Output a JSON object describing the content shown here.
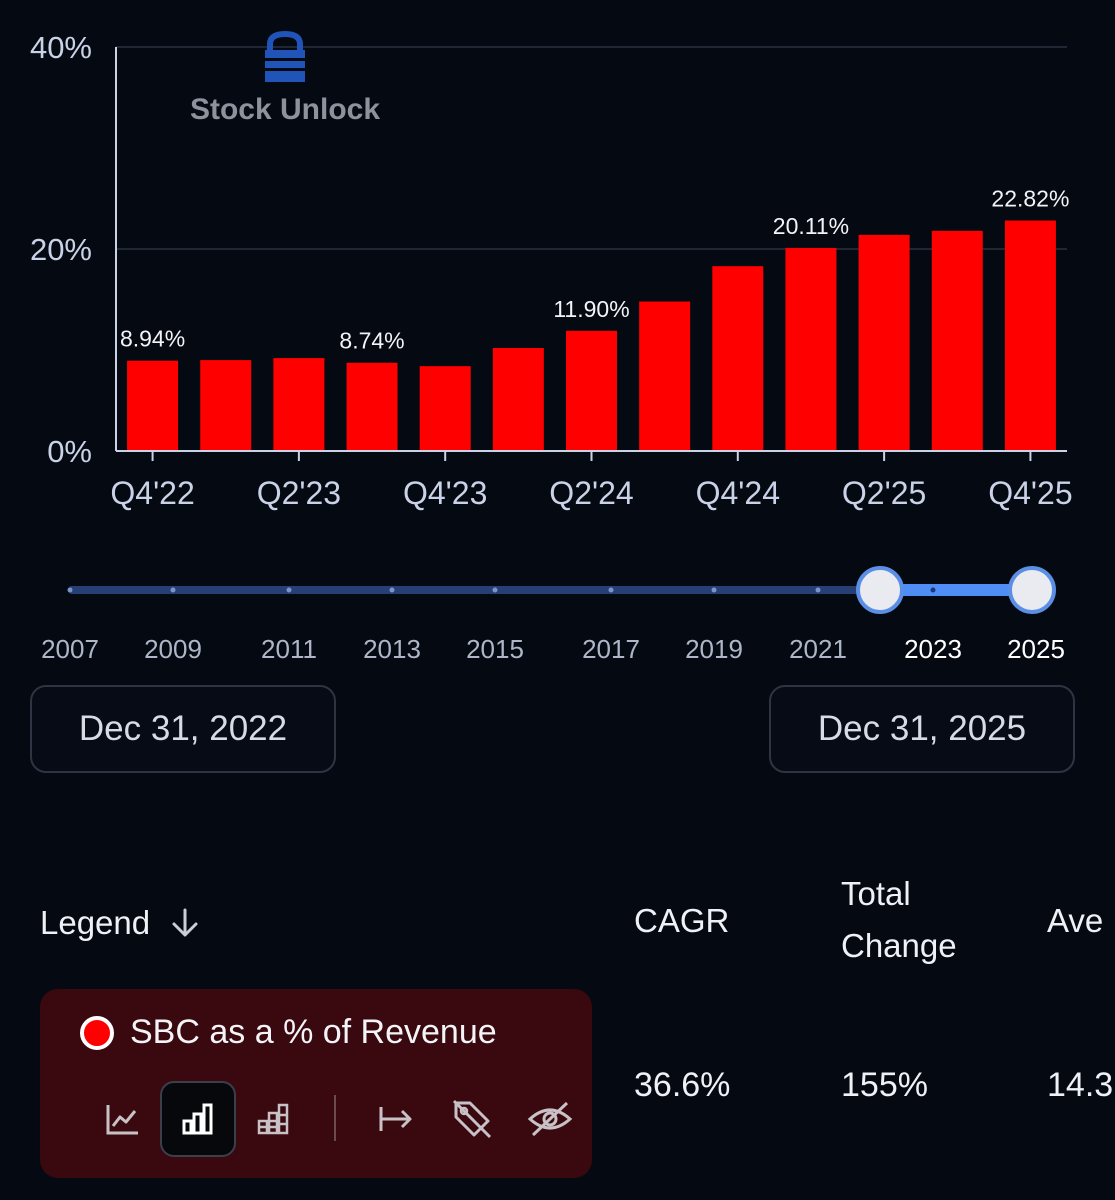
{
  "watermark": {
    "text": "Stock Unlock"
  },
  "chart_data": {
    "type": "bar",
    "categories": [
      "Q4'22",
      "Q1'23",
      "Q2'23",
      "Q3'23",
      "Q4'23",
      "Q1'24",
      "Q2'24",
      "Q3'24",
      "Q4'24",
      "Q1'25",
      "Q2'25",
      "Q3'25",
      "Q4'25"
    ],
    "series": [
      {
        "name": "SBC as a % of Revenue",
        "values": [
          8.94,
          9.0,
          9.2,
          8.74,
          8.4,
          10.2,
          11.9,
          14.8,
          18.3,
          20.11,
          21.4,
          21.8,
          22.82
        ]
      }
    ],
    "color": "#ff0000",
    "data_labels": [
      "8.94%",
      "",
      "",
      "8.74%",
      "",
      "",
      "11.90%",
      "",
      "",
      "20.11%",
      "",
      "",
      "22.82%"
    ],
    "x_tick_labels": [
      "Q4'22",
      "Q2'23",
      "Q4'23",
      "Q2'24",
      "Q4'24",
      "Q2'25",
      "Q4'25"
    ],
    "y_tick_labels": [
      "0%",
      "20%",
      "40%"
    ],
    "ylim": [
      0,
      40
    ],
    "grid": true
  },
  "range_slider": {
    "years": [
      "2007",
      "2009",
      "2011",
      "2013",
      "2015",
      "2017",
      "2019",
      "2021",
      "2023",
      "2025"
    ],
    "selected_start_year": "2022",
    "selected_end_year": "2025"
  },
  "date_range": {
    "start": "Dec 31, 2022",
    "end": "Dec 31, 2025"
  },
  "table": {
    "legend_header": "Legend",
    "cagr_header": "CAGR",
    "total_change_header": "Total Change",
    "average_header": "Ave",
    "series_name": "SBC as a % of Revenue",
    "series_color": "#ff0000",
    "cagr_value": "36.6%",
    "total_change_value": "155%",
    "average_value": "14.3"
  },
  "legend_tools": [
    "line-chart-icon",
    "bar-chart-icon",
    "stacked-bar-icon",
    "arrow-right-bar-icon",
    "tag-off-icon",
    "eye-off-icon"
  ]
}
